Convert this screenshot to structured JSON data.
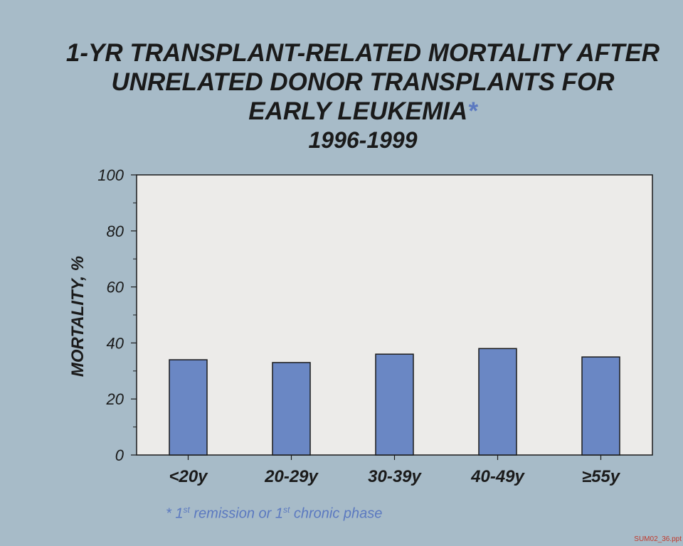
{
  "title": {
    "line1": "1-YR TRANSPLANT-RELATED MORTALITY AFTER",
    "line2": "UNRELATED DONOR TRANSPLANTS FOR",
    "line3": "EARLY LEUKEMIA",
    "asterisk": "*",
    "years": "1996-1999"
  },
  "footnote": {
    "prefix": "* 1",
    "sup1": "st",
    "middle": " remission or 1",
    "sup2": "st",
    "suffix": " chronic phase"
  },
  "file_ref": "SUM02_36.ppt",
  "colors": {
    "background": "#a7bbc8",
    "plot_area": "#ecebe9",
    "bar": "#6a87c4",
    "accent_text": "#5b79c0"
  },
  "chart_data": {
    "type": "bar",
    "title": "1-YR TRANSPLANT-RELATED MORTALITY AFTER UNRELATED DONOR TRANSPLANTS FOR EARLY LEUKEMIA* 1996-1999",
    "xlabel": "",
    "ylabel": "MORTALITY, %",
    "categories": [
      "<20y",
      "20-29y",
      "30-39y",
      "40-49y",
      "≥55y"
    ],
    "values": [
      34,
      33,
      36,
      38,
      35
    ],
    "ylim": [
      0,
      100
    ],
    "yticks": [
      0,
      20,
      40,
      60,
      80,
      100
    ],
    "grid": false,
    "legend": "none"
  }
}
